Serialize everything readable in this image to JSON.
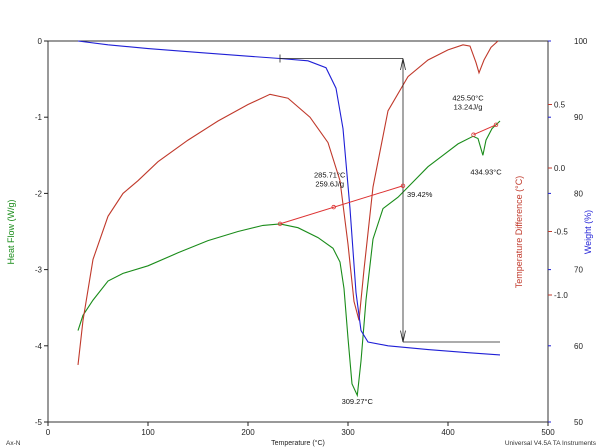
{
  "chart_data": {
    "type": "line",
    "title": "",
    "xlabel": "Temperature (°C)",
    "xlim": [
      0,
      500
    ],
    "x_ticks": [
      "0",
      "100",
      "200",
      "300",
      "400",
      "500"
    ],
    "axes": {
      "heat_flow": {
        "label": "Heat Flow (W/g)",
        "range": [
          -5,
          0
        ],
        "ticks": [
          "0",
          "-1",
          "-2",
          "-3",
          "-4",
          "-5"
        ],
        "color": "#1a8c1a"
      },
      "temp_diff": {
        "label": "Temperature Difference (°C)",
        "range": [
          -2.0,
          1.0
        ],
        "ticks": [
          "0.5",
          "0.0",
          "-0.5",
          "-1.0"
        ],
        "color": "#c0392b"
      },
      "weight": {
        "label": "Weight (%)",
        "range": [
          50,
          100
        ],
        "ticks": [
          "100",
          "90",
          "80",
          "70",
          "60",
          "50"
        ],
        "color": "#1f1fd6"
      }
    },
    "series": [
      {
        "name": "Heat Flow (W/g)",
        "axis": "heat_flow",
        "color": "#1a8c1a",
        "points": [
          [
            30,
            -3.8
          ],
          [
            35,
            -3.6
          ],
          [
            45,
            -3.4
          ],
          [
            60,
            -3.15
          ],
          [
            75,
            -3.05
          ],
          [
            100,
            -2.95
          ],
          [
            130,
            -2.78
          ],
          [
            160,
            -2.62
          ],
          [
            190,
            -2.5
          ],
          [
            215,
            -2.42
          ],
          [
            232,
            -2.4
          ],
          [
            250,
            -2.45
          ],
          [
            270,
            -2.58
          ],
          [
            285,
            -2.72
          ],
          [
            292,
            -2.9
          ],
          [
            296,
            -3.25
          ],
          [
            300,
            -3.9
          ],
          [
            304,
            -4.5
          ],
          [
            309.3,
            -4.65
          ],
          [
            313,
            -4.2
          ],
          [
            318,
            -3.4
          ],
          [
            325,
            -2.6
          ],
          [
            335,
            -2.2
          ],
          [
            350,
            -2.05
          ],
          [
            365,
            -1.85
          ],
          [
            380,
            -1.65
          ],
          [
            395,
            -1.5
          ],
          [
            410,
            -1.35
          ],
          [
            425,
            -1.25
          ],
          [
            430,
            -1.28
          ],
          [
            434.9,
            -1.5
          ],
          [
            438,
            -1.3
          ],
          [
            444,
            -1.15
          ],
          [
            452,
            -1.05
          ]
        ]
      },
      {
        "name": "Temperature Difference (°C)",
        "axis": "temp_diff",
        "color": "#c0392b",
        "points": [
          [
            30,
            -1.55
          ],
          [
            35,
            -1.2
          ],
          [
            45,
            -0.72
          ],
          [
            60,
            -0.38
          ],
          [
            75,
            -0.2
          ],
          [
            90,
            -0.1
          ],
          [
            110,
            0.05
          ],
          [
            140,
            0.22
          ],
          [
            170,
            0.37
          ],
          [
            200,
            0.5
          ],
          [
            222,
            0.58
          ],
          [
            240,
            0.55
          ],
          [
            262,
            0.4
          ],
          [
            280,
            0.2
          ],
          [
            292,
            -0.1
          ],
          [
            300,
            -0.6
          ],
          [
            306,
            -1.05
          ],
          [
            311,
            -1.2
          ],
          [
            316,
            -0.8
          ],
          [
            325,
            -0.15
          ],
          [
            340,
            0.45
          ],
          [
            360,
            0.72
          ],
          [
            380,
            0.85
          ],
          [
            400,
            0.93
          ],
          [
            415,
            0.97
          ],
          [
            422,
            0.96
          ],
          [
            428,
            0.83
          ],
          [
            431,
            0.75
          ],
          [
            436,
            0.85
          ],
          [
            443,
            0.95
          ],
          [
            450,
            1.0
          ]
        ]
      },
      {
        "name": "Weight (%)",
        "axis": "weight",
        "color": "#1f1fd6",
        "points": [
          [
            30,
            100
          ],
          [
            60,
            99.5
          ],
          [
            100,
            99
          ],
          [
            150,
            98.5
          ],
          [
            200,
            98
          ],
          [
            232,
            97.7
          ],
          [
            260,
            97.4
          ],
          [
            278,
            96.5
          ],
          [
            288,
            93.8
          ],
          [
            295,
            88.5
          ],
          [
            302,
            78
          ],
          [
            308,
            67
          ],
          [
            313,
            62
          ],
          [
            320,
            60.5
          ],
          [
            340,
            60
          ],
          [
            380,
            59.5
          ],
          [
            420,
            59.1
          ],
          [
            452,
            58.8
          ]
        ]
      }
    ],
    "annotations": [
      {
        "text": "309.27°C",
        "x": 309.27
      },
      {
        "text": "285.71°C",
        "x": 285.71
      },
      {
        "text": "259.6J/g"
      },
      {
        "text": "39.42%"
      },
      {
        "text": "425.50°C",
        "x": 425.5
      },
      {
        "text": "13.24J/g"
      },
      {
        "text": "434.93°C",
        "x": 434.93
      }
    ],
    "legend": "none",
    "grid": false
  },
  "footer": {
    "left": "Ax-N",
    "right": "Universal V4.5A TA Instruments"
  }
}
